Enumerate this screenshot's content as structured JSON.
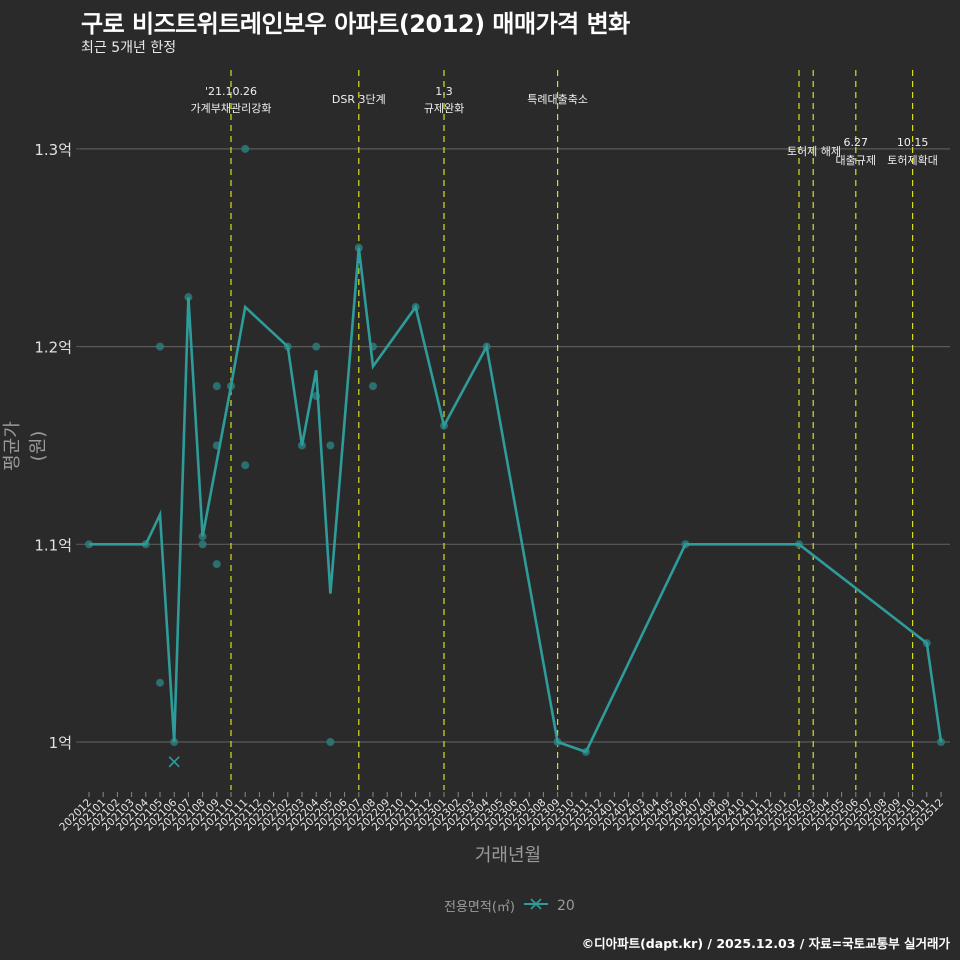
{
  "header": {
    "title": "구로 비즈트위트레인보우 아파트(2012) 매매가격 변화",
    "subtitle": "최근 5개년 한정"
  },
  "axes": {
    "xlabel": "거래년월",
    "ylabel": "평균가(원)"
  },
  "legend": {
    "title": "전용면적(㎡)",
    "items": [
      {
        "label": "20",
        "color": "#2e9c9a"
      }
    ]
  },
  "caption": "©디아파트(dapt.kr) / 2025.12.03 / 자료=국토교통부 실거래가",
  "colors": {
    "background": "#2b2a2b",
    "line": "#2e9c9a",
    "gridline": "#5a5a5a",
    "event_line": "#d8e01e",
    "text": "#ffffff",
    "muted": "#9a9a9a"
  },
  "chart_data": {
    "type": "line",
    "title": "구로 비즈트위트레인보우 아파트(2012) 매매가격 변화",
    "subtitle": "최근 5개년 한정",
    "xlabel": "거래년월",
    "ylabel": "평균가(원)",
    "ylim": [
      0.96,
      1.33
    ],
    "y_ticks": [
      {
        "value": 1.0,
        "label": "1억"
      },
      {
        "value": 1.1,
        "label": "1.1억"
      },
      {
        "value": 1.2,
        "label": "1.2억"
      },
      {
        "value": 1.3,
        "label": "1.3억"
      }
    ],
    "categories": [
      "202012",
      "202101",
      "202102",
      "202103",
      "202104",
      "202105",
      "202106",
      "202107",
      "202108",
      "202109",
      "202110",
      "202111",
      "202112",
      "202201",
      "202202",
      "202203",
      "202204",
      "202205",
      "202206",
      "202207",
      "202208",
      "202209",
      "202210",
      "202211",
      "202212",
      "202301",
      "202302",
      "202303",
      "202304",
      "202305",
      "202306",
      "202307",
      "202308",
      "202309",
      "202310",
      "202311",
      "202312",
      "202401",
      "202402",
      "202403",
      "202404",
      "202405",
      "202406",
      "202407",
      "202408",
      "202409",
      "202410",
      "202411",
      "202412",
      "202501",
      "202502",
      "202503",
      "202504",
      "202505",
      "202506",
      "202507",
      "202508",
      "202509",
      "202510",
      "202511",
      "202512"
    ],
    "series": [
      {
        "name": "20",
        "line_points": [
          {
            "x": "202012",
            "y": 1.1
          },
          {
            "x": "202104",
            "y": 1.1
          },
          {
            "x": "202105",
            "y": 1.115
          },
          {
            "x": "202106",
            "y": 1.0
          },
          {
            "x": "202107",
            "y": 1.225
          },
          {
            "x": "202108",
            "y": 1.104
          },
          {
            "x": "202110",
            "y": 1.18
          },
          {
            "x": "202111",
            "y": 1.22
          },
          {
            "x": "202202",
            "y": 1.2
          },
          {
            "x": "202203",
            "y": 1.15
          },
          {
            "x": "202204",
            "y": 1.188
          },
          {
            "x": "202205",
            "y": 1.075
          },
          {
            "x": "202207",
            "y": 1.25
          },
          {
            "x": "202208",
            "y": 1.19
          },
          {
            "x": "202211",
            "y": 1.22
          },
          {
            "x": "202301",
            "y": 1.16
          },
          {
            "x": "202304",
            "y": 1.2
          },
          {
            "x": "202309",
            "y": 1.0
          },
          {
            "x": "202311",
            "y": 0.995
          },
          {
            "x": "202406",
            "y": 1.1
          },
          {
            "x": "202502",
            "y": 1.1
          },
          {
            "x": "202511",
            "y": 1.05
          },
          {
            "x": "202512",
            "y": 1.0
          }
        ],
        "scatter_points": [
          {
            "x": "202012",
            "y": 1.1
          },
          {
            "x": "202104",
            "y": 1.1
          },
          {
            "x": "202105",
            "y": 1.2
          },
          {
            "x": "202105",
            "y": 1.03
          },
          {
            "x": "202106",
            "y": 1.0
          },
          {
            "x": "202107",
            "y": 1.225
          },
          {
            "x": "202108",
            "y": 1.104
          },
          {
            "x": "202108",
            "y": 1.1
          },
          {
            "x": "202109",
            "y": 1.18
          },
          {
            "x": "202109",
            "y": 1.15
          },
          {
            "x": "202109",
            "y": 1.09
          },
          {
            "x": "202110",
            "y": 1.18
          },
          {
            "x": "202111",
            "y": 1.3
          },
          {
            "x": "202111",
            "y": 1.14
          },
          {
            "x": "202202",
            "y": 1.2
          },
          {
            "x": "202203",
            "y": 1.15
          },
          {
            "x": "202204",
            "y": 1.2
          },
          {
            "x": "202204",
            "y": 1.175
          },
          {
            "x": "202205",
            "y": 1.15
          },
          {
            "x": "202205",
            "y": 1.0
          },
          {
            "x": "202207",
            "y": 1.25
          },
          {
            "x": "202208",
            "y": 1.2
          },
          {
            "x": "202208",
            "y": 1.18
          },
          {
            "x": "202211",
            "y": 1.22
          },
          {
            "x": "202301",
            "y": 1.16
          },
          {
            "x": "202304",
            "y": 1.2
          },
          {
            "x": "202309",
            "y": 1.0
          },
          {
            "x": "202311",
            "y": 0.995
          },
          {
            "x": "202406",
            "y": 1.1
          },
          {
            "x": "202502",
            "y": 1.1
          },
          {
            "x": "202511",
            "y": 1.05
          },
          {
            "x": "202512",
            "y": 1.0
          }
        ],
        "cross_marker": {
          "x": "202106",
          "y": 0.99
        }
      }
    ],
    "events": [
      {
        "x": "202110",
        "line1": "'21.10.26",
        "line2": "가계부채관리강화",
        "label_y": 0
      },
      {
        "x": "202207",
        "line1": "",
        "line2": "DSR 3단계",
        "label_y": 2
      },
      {
        "x": "202301",
        "line1": "1.3",
        "line2": "규제완화",
        "label_y": 0
      },
      {
        "x": "202309",
        "line1": "",
        "line2": "특례대출축소",
        "label_y": 2
      },
      {
        "x": "202502",
        "line1": "",
        "line2": "토허제 해제",
        "label_y": 1
      },
      {
        "x": "202503",
        "line1": "",
        "line2": "",
        "label_y": 1
      },
      {
        "x": "202506",
        "line1": "6.27",
        "line2": "대출규제",
        "label_y": 3
      },
      {
        "x": "202510",
        "line1": "10.15",
        "line2": "토허제확대",
        "label_y": 3
      }
    ],
    "grid": true,
    "legend_position": "bottom"
  }
}
